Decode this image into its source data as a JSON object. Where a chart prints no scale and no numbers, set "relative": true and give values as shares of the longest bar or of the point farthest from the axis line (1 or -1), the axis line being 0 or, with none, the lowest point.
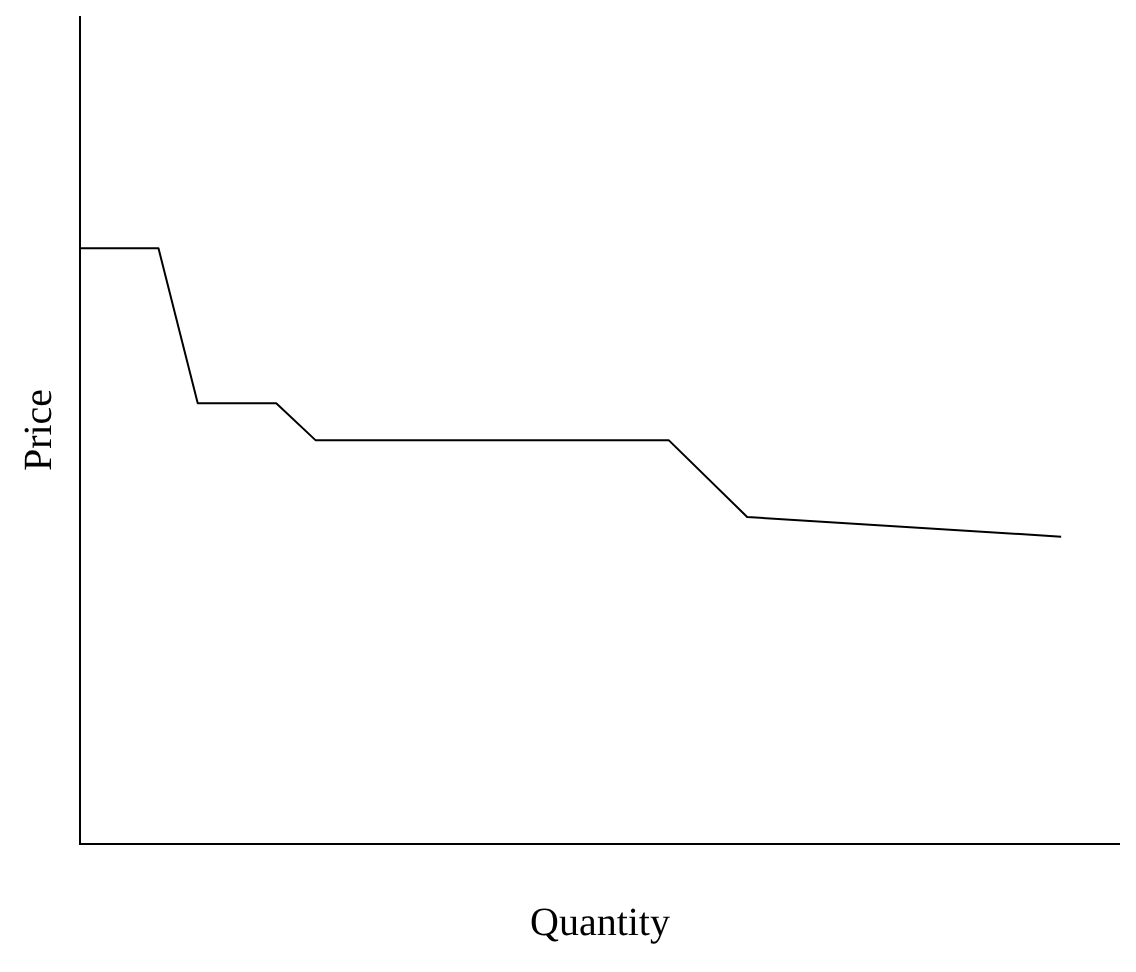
{
  "chart_data": {
    "type": "line",
    "xlabel": "Quantity",
    "ylabel": "Price",
    "relative": true,
    "categories": [
      null,
      null,
      null,
      null,
      null,
      null,
      null,
      null,
      null,
      null,
      null,
      null,
      null,
      null,
      null,
      null,
      null,
      null,
      null,
      null,
      null,
      null,
      null,
      null,
      null,
      null
    ],
    "tick_labels": false,
    "grid": false,
    "legend": false,
    "marker": "none",
    "line_style": "solid",
    "series": [
      {
        "color": "#000000",
        "values": [
          1,
          null,
          1,
          0.74,
          null,
          0.74,
          0.678,
          null,
          null,
          null,
          null,
          null,
          null,
          null,
          null,
          0.678,
          null,
          0.549,
          null,
          null,
          null,
          null,
          null,
          null,
          null,
          0.516
        ]
      }
    ]
  }
}
